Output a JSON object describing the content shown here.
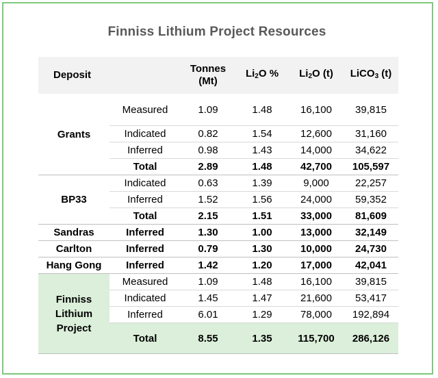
{
  "title": "Finniss Lithium Project Resources",
  "header": {
    "deposit": "Deposit",
    "tonnes_line1": "Tonnes",
    "tonnes_line2": "(Mt)",
    "li2o_pct_pre": "Li",
    "li2o_pct_sub": "2",
    "li2o_pct_post": "O %",
    "li2o_t_pre": "Li",
    "li2o_t_sub": "2",
    "li2o_t_post": "O (t)",
    "lico3_pre": "LiCO",
    "lico3_sub": "3",
    "lico3_post": " (t)"
  },
  "grants": {
    "name": "Grants",
    "rows": [
      {
        "class": "Measured",
        "tonnes": "1.09",
        "pct": "1.48",
        "li2o": "16,100",
        "lico3": "39,815"
      },
      {
        "class": "Indicated",
        "tonnes": "0.82",
        "pct": "1.54",
        "li2o": "12,600",
        "lico3": "31,160"
      },
      {
        "class": "Inferred",
        "tonnes": "0.98",
        "pct": "1.43",
        "li2o": "14,000",
        "lico3": "34,622"
      },
      {
        "class": "Total",
        "tonnes": "2.89",
        "pct": "1.48",
        "li2o": "42,700",
        "lico3": "105,597"
      }
    ]
  },
  "bp33": {
    "name": "BP33",
    "rows": [
      {
        "class": "Indicated",
        "tonnes": "0.63",
        "pct": "1.39",
        "li2o": "9,000",
        "lico3": "22,257"
      },
      {
        "class": "Inferred",
        "tonnes": "1.52",
        "pct": "1.56",
        "li2o": "24,000",
        "lico3": "59,352"
      },
      {
        "class": "Total",
        "tonnes": "2.15",
        "pct": "1.51",
        "li2o": "33,000",
        "lico3": "81,609"
      }
    ]
  },
  "singles": [
    {
      "name": "Sandras",
      "class": "Inferred",
      "tonnes": "1.30",
      "pct": "1.00",
      "li2o": "13,000",
      "lico3": "32,149"
    },
    {
      "name": "Carlton",
      "class": "Inferred",
      "tonnes": "0.79",
      "pct": "1.30",
      "li2o": "10,000",
      "lico3": "24,730"
    },
    {
      "name": "Hang Gong",
      "class": "Inferred",
      "tonnes": "1.42",
      "pct": "1.20",
      "li2o": "17,000",
      "lico3": "42,041"
    }
  ],
  "finniss": {
    "name_line1": "Finniss",
    "name_line2": "Lithium",
    "name_line3": "Project",
    "rows": [
      {
        "class": "Measured",
        "tonnes": "1.09",
        "pct": "1.48",
        "li2o": "16,100",
        "lico3": "39,815"
      },
      {
        "class": "Indicated",
        "tonnes": "1.45",
        "pct": "1.47",
        "li2o": "21,600",
        "lico3": "53,417"
      },
      {
        "class": "Inferred",
        "tonnes": "6.01",
        "pct": "1.29",
        "li2o": "78,000",
        "lico3": "192,894"
      },
      {
        "class": "Total",
        "tonnes": "8.55",
        "pct": "1.35",
        "li2o": "115,700",
        "lico3": "286,126"
      }
    ]
  },
  "colors": {
    "frame": "#7dc97b",
    "highlight": "#dbefda",
    "header_bg": "#f2f2f2",
    "title": "#595959"
  }
}
